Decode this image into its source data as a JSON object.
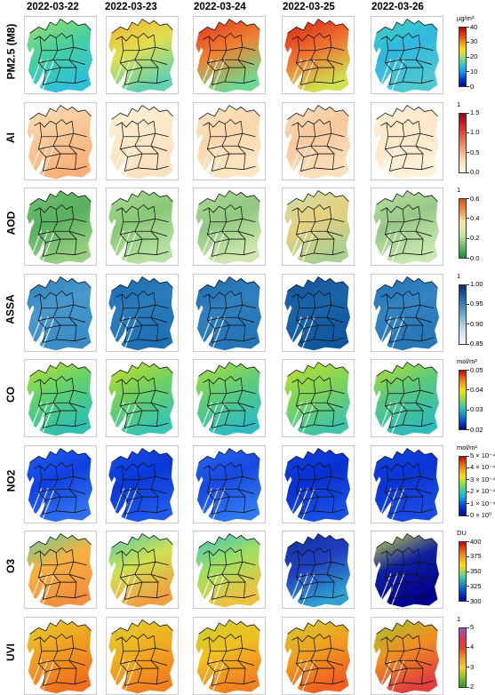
{
  "dates": [
    "2022-03-22",
    "2022-03-23",
    "2022-03-24",
    "2022-03-25",
    "2022-03-26"
  ],
  "rows": [
    {
      "label": "PM2.5 (M8)",
      "unit": "µg/m³",
      "ticks": [
        "40",
        "30",
        "20",
        "10",
        "0"
      ],
      "gradient": "linear-gradient(to bottom,#c00000,#ff3000,#ff9000,#ffe000,#a0e060,#30d0c0,#00a0ff,#0040e0,#0000a0)",
      "fills": [
        [
          "#9ee06a",
          "#48d0a0",
          "#30c0d8"
        ],
        [
          "#f0b030",
          "#e0e050",
          "#60d0b0"
        ],
        [
          "#e03020",
          "#f08030",
          "#70d890"
        ],
        [
          "#d02010",
          "#f07030",
          "#d0e050"
        ],
        [
          "#40d0c0",
          "#30b8e0",
          "#50c8d0"
        ]
      ]
    },
    {
      "label": "AI",
      "unit": "1",
      "ticks": [
        "1.5",
        "1.0",
        "0.5",
        "0.0"
      ],
      "gradient": "linear-gradient(to bottom,#a00020,#e02020,#f06040,#f8a070,#fde0b0,#fff8e8)",
      "fills": [
        [
          "#fde0b8",
          "#f8c898",
          "#f8b078"
        ],
        [
          "#fff2d8",
          "#fde8c8",
          "#fde0c0"
        ],
        [
          "#fde6c4",
          "#fbd6ac",
          "#fde6c4"
        ],
        [
          "#fce0bc",
          "#f8c89c",
          "#fce0bc"
        ],
        [
          "#fff0d8",
          "#fde8c8",
          "#fff0d8"
        ]
      ]
    },
    {
      "label": "AOD",
      "unit": "1",
      "ticks": [
        "0.6",
        "0.4",
        "0.2",
        "0.0"
      ],
      "gradient": "linear-gradient(to bottom,#e05000,#f89040,#fde8a0,#c8e8a0,#70c060,#109030)",
      "fills": [
        [
          "#70c070",
          "#58b060",
          "#98d080"
        ],
        [
          "#a8d890",
          "#88c878",
          "#b8e0a0"
        ],
        [
          "#b0d898",
          "#90c880",
          "#d0e8b0"
        ],
        [
          "#c8e0a8",
          "#e8d080",
          "#a8d090"
        ],
        [
          "#b8e0a0",
          "#98c888",
          "#c8e8b0"
        ]
      ]
    },
    {
      "label": "ASSA",
      "unit": "1",
      "ticks": [
        "1.00",
        "0.95",
        "0.90",
        "0.85"
      ],
      "gradient": "linear-gradient(to bottom,#08306b,#2171b5,#6baed6,#c6dbef,#f7fbff)",
      "fills": [
        [
          "#2c7fbc",
          "#4a98cc",
          "#3a8cc6"
        ],
        [
          "#1c6cb0",
          "#2a7cbc",
          "#2070b4"
        ],
        [
          "#1c6aae",
          "#3080bf",
          "#2474b6"
        ],
        [
          "#10549c",
          "#1c64a8",
          "#10569e"
        ],
        [
          "#2070b4",
          "#3484c2",
          "#2676b8"
        ]
      ]
    },
    {
      "label": "CO",
      "unit": "mol/m²",
      "ticks": [
        "0.05",
        "0.04",
        "0.03",
        "0.02"
      ],
      "gradient": "linear-gradient(to bottom,#d00000,#ff8000,#ffe000,#80e040,#20c0c0,#0060e0,#000090)",
      "fills": [
        [
          "#b8e030",
          "#60d070",
          "#30c0b0"
        ],
        [
          "#c8e028",
          "#70d060",
          "#38c4b0"
        ],
        [
          "#b0e038",
          "#60cc78",
          "#30bcc0"
        ],
        [
          "#c0e030",
          "#80d458",
          "#40c4a8"
        ],
        [
          "#b8e030",
          "#58c880",
          "#30bcb8"
        ]
      ]
    },
    {
      "label": "NO2",
      "unit": "mol/m²",
      "ticks": [
        "5 × 10⁻⁴",
        "4 × 10⁻⁴",
        "3 × 10⁻⁴",
        "2 × 10⁻⁴",
        "1 × 10⁻⁴",
        "0 × 10⁰"
      ],
      "gradient": "linear-gradient(to bottom,#d00000,#ff8000,#ffe000,#60e060,#00c0e0,#0040f0,#0000a0)",
      "fills": [
        [
          "#2060f0",
          "#1040e0",
          "#3070f0"
        ],
        [
          "#1850e8",
          "#0a38d8",
          "#2058ea"
        ],
        [
          "#2868f0",
          "#1848e0",
          "#3078f0"
        ],
        [
          "#1444e0",
          "#0830d0",
          "#1850e4"
        ],
        [
          "#1444e0",
          "#0a34d4",
          "#1a4ce2"
        ]
      ]
    },
    {
      "label": "O3",
      "unit": "DU",
      "ticks": [
        "400",
        "375",
        "350",
        "325",
        "300"
      ],
      "gradient": "linear-gradient(to bottom,#d00000,#ff8000,#ffe000,#40d0a0,#0060e0,#0000a0)",
      "fills": [
        [
          "#60d0a0",
          "#f8b040",
          "#f09040"
        ],
        [
          "#50c8b0",
          "#d0e050",
          "#f0a040"
        ],
        [
          "#40c0c0",
          "#a0e060",
          "#f0c040"
        ],
        [
          "#10309c",
          "#2040c0",
          "#30a0d0"
        ],
        [
          "#d0e040",
          "#1020a0",
          "#000090"
        ]
      ]
    },
    {
      "label": "UVI",
      "unit": "1",
      "ticks": [
        "5",
        "4",
        "3",
        "2"
      ],
      "gradient": "linear-gradient(to bottom,#a050c0,#e03060,#f04020,#f89020,#f8d020,#90c020,#20a020)",
      "fills": [
        [
          "#e0d030",
          "#f0a020",
          "#f07020"
        ],
        [
          "#d8d030",
          "#f0b020",
          "#f08020"
        ],
        [
          "#c8d030",
          "#f0c020",
          "#f08020"
        ],
        [
          "#d0d030",
          "#f0a020",
          "#f06020"
        ],
        [
          "#a0c830",
          "#f09020",
          "#e04040"
        ]
      ]
    }
  ]
}
